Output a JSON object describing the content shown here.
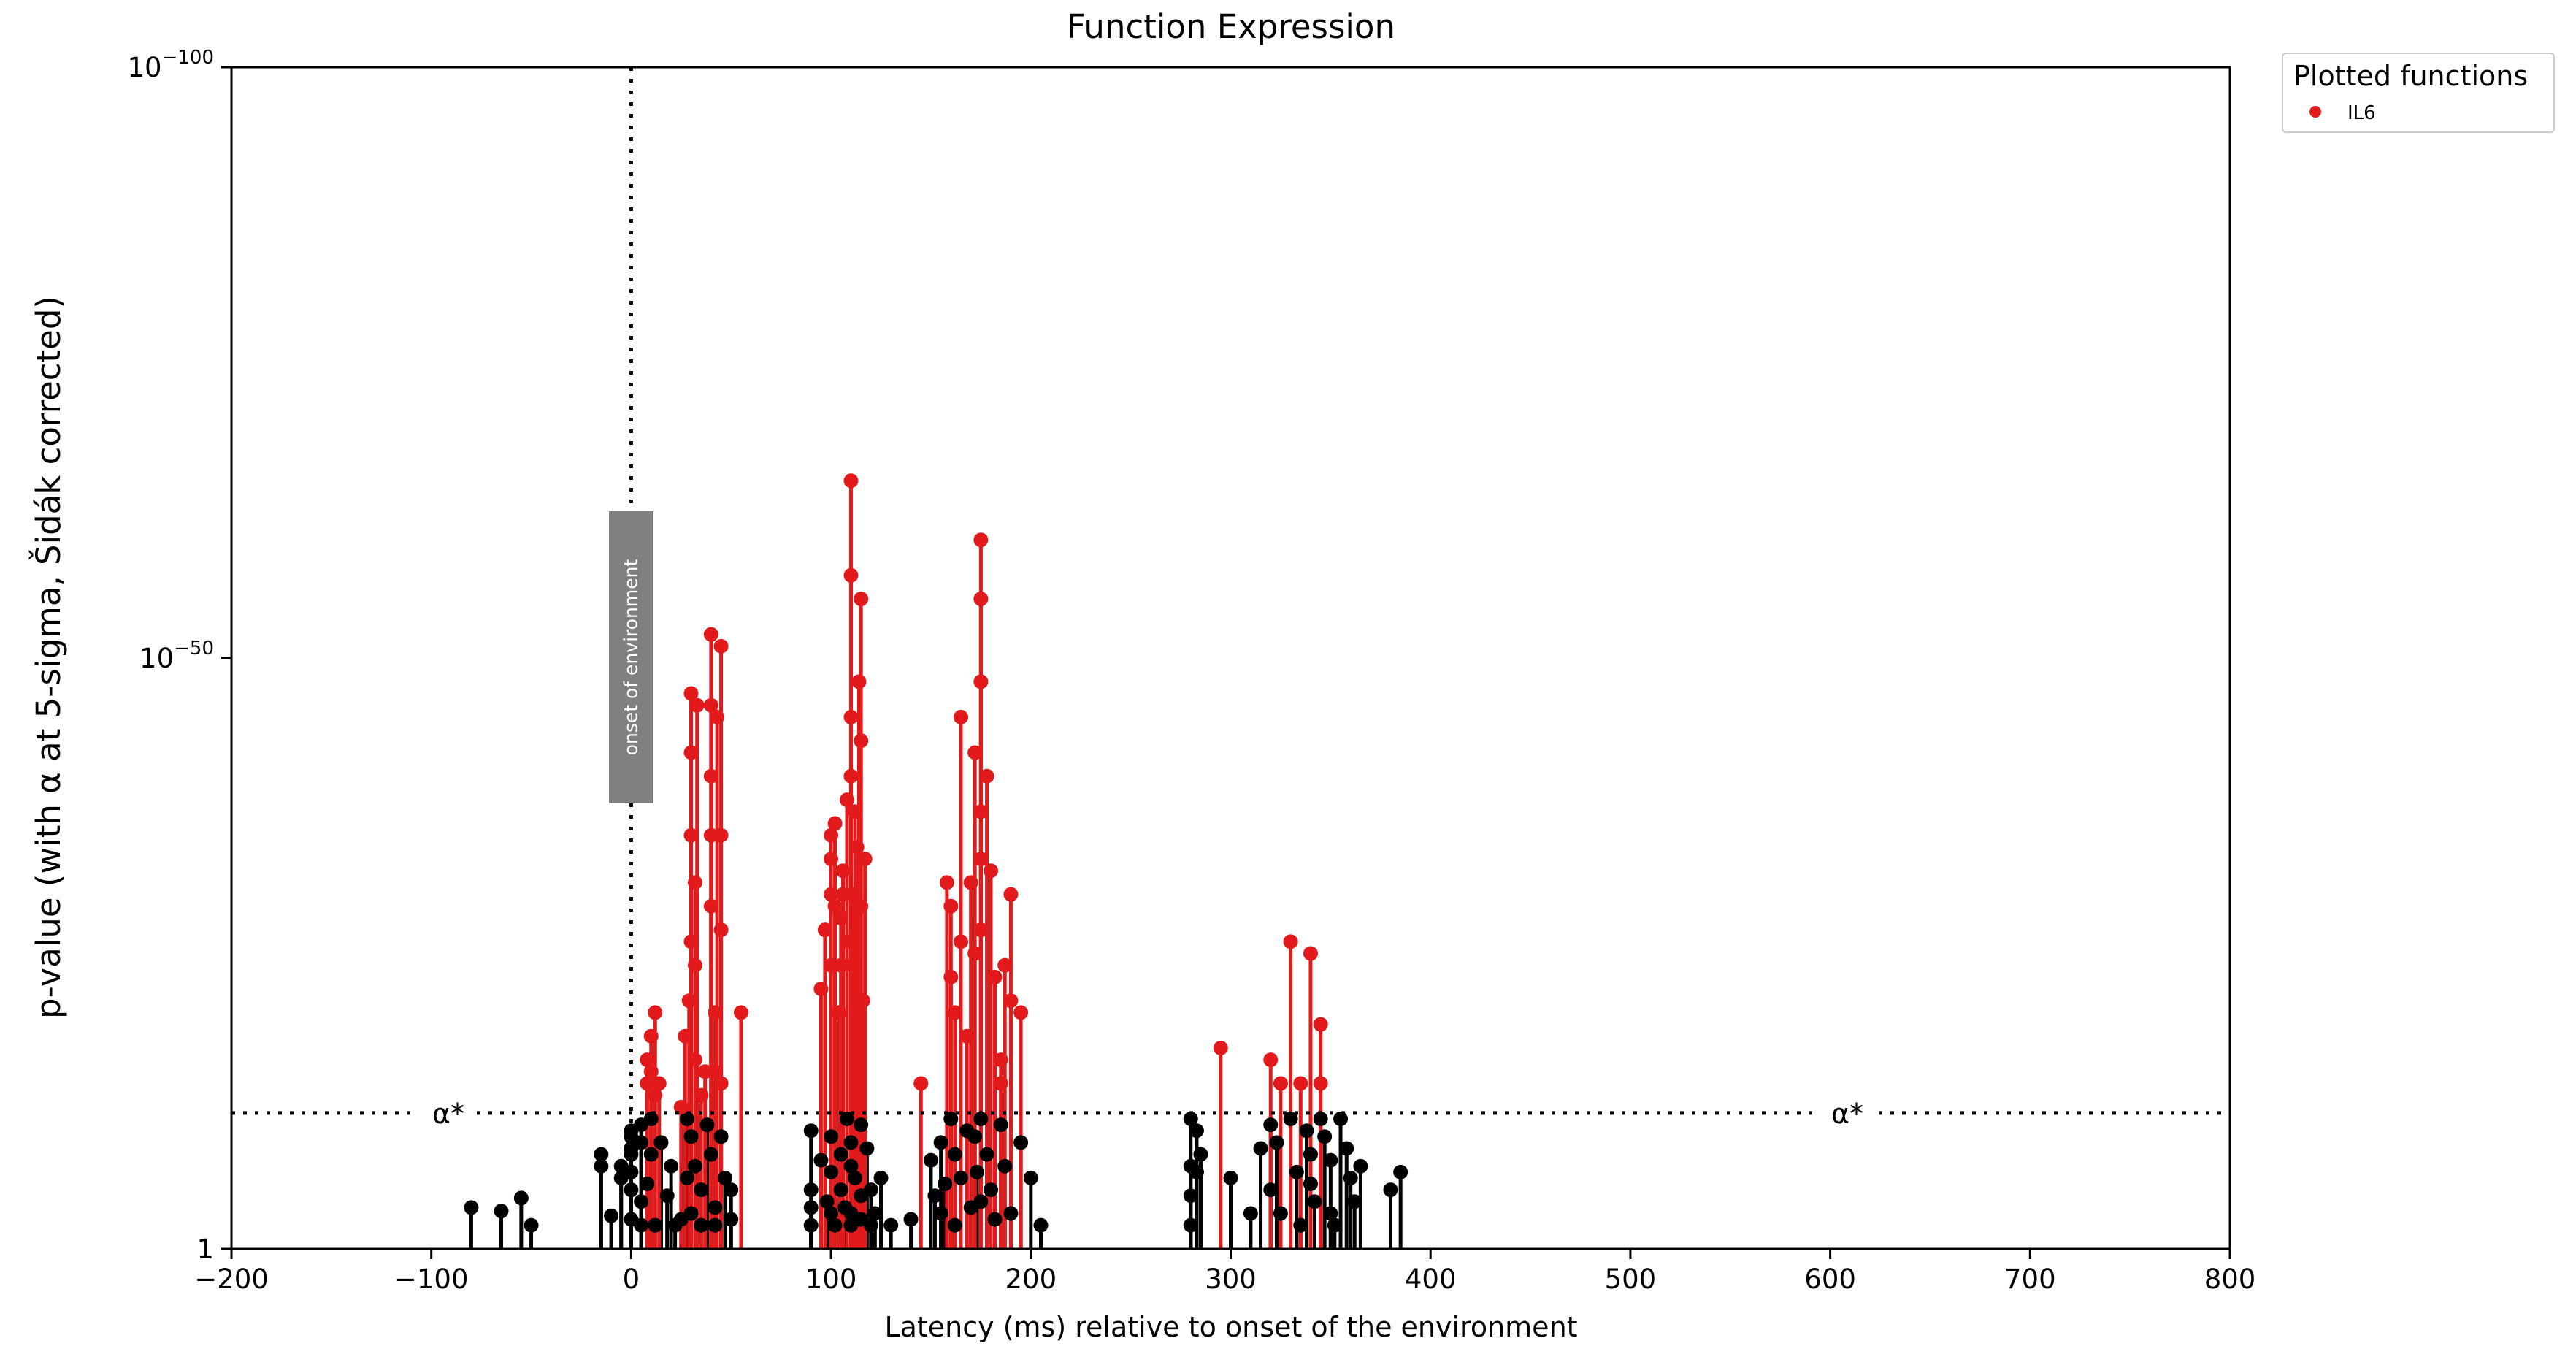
{
  "chart_data": {
    "type": "scatter",
    "title": "Function Expression",
    "xlabel": "Latency (ms) relative to onset of the environment",
    "ylabel": "p-value (with α at 5-sigma, Šidák corrected)",
    "xlim": [
      -200,
      800
    ],
    "ylim_log10": [
      0,
      -100
    ],
    "x_ticks": [
      -200,
      -100,
      0,
      100,
      200,
      300,
      400,
      500,
      600,
      700,
      800
    ],
    "x_tick_labels": [
      "−200",
      "−100",
      "0",
      "100",
      "200",
      "300",
      "400",
      "500",
      "600",
      "700",
      "800"
    ],
    "y_ticks_log10": [
      0,
      -50,
      -100
    ],
    "y_tick_labels": [
      {
        "base": "1",
        "exp": ""
      },
      {
        "base": "10",
        "exp": "−50"
      },
      {
        "base": "10",
        "exp": "−100"
      }
    ],
    "scale": "log",
    "alpha_log10": -11.5,
    "alpha_label": "α*",
    "onset_ms": 0,
    "onset_label": "onset of environment",
    "legend": {
      "title": "Plotted functions",
      "placement": "outside-top-right"
    },
    "colors": {
      "significant": "#e31a1c",
      "nonsignificant": "#000000",
      "onset_box": "#808080"
    },
    "series": [
      {
        "name": "IL6",
        "color": "#e31a1c",
        "significant_points_log10": [
          [
            8,
            -14
          ],
          [
            8,
            -16
          ],
          [
            10,
            -15
          ],
          [
            10,
            -18
          ],
          [
            12,
            -13
          ],
          [
            12,
            -20
          ],
          [
            14,
            -14
          ],
          [
            25,
            -12
          ],
          [
            27,
            -18
          ],
          [
            29,
            -21
          ],
          [
            30,
            -26
          ],
          [
            30,
            -35
          ],
          [
            30,
            -42
          ],
          [
            30,
            -47
          ],
          [
            32,
            -16
          ],
          [
            32,
            -24
          ],
          [
            32,
            -31
          ],
          [
            33,
            -46
          ],
          [
            35,
            -13
          ],
          [
            37,
            -15
          ],
          [
            40,
            -29
          ],
          [
            40,
            -35
          ],
          [
            40,
            -40
          ],
          [
            40,
            -46
          ],
          [
            40,
            -52
          ],
          [
            42,
            -15
          ],
          [
            42,
            -20
          ],
          [
            43,
            -45
          ],
          [
            45,
            -14
          ],
          [
            45,
            -27
          ],
          [
            45,
            -35
          ],
          [
            45,
            -51
          ],
          [
            55,
            -20
          ],
          [
            95,
            -22
          ],
          [
            97,
            -27
          ],
          [
            100,
            -24
          ],
          [
            100,
            -30
          ],
          [
            100,
            -33
          ],
          [
            100,
            -35
          ],
          [
            102,
            -29
          ],
          [
            102,
            -36
          ],
          [
            104,
            -20
          ],
          [
            105,
            -24
          ],
          [
            105,
            -28
          ],
          [
            106,
            -30
          ],
          [
            106,
            -32
          ],
          [
            108,
            -26
          ],
          [
            108,
            -38
          ],
          [
            110,
            -65
          ],
          [
            110,
            -57
          ],
          [
            110,
            -45
          ],
          [
            110,
            -40
          ],
          [
            111,
            -30
          ],
          [
            111,
            -24
          ],
          [
            112,
            -37
          ],
          [
            113,
            -34
          ],
          [
            114,
            -48
          ],
          [
            115,
            -55
          ],
          [
            115,
            -43
          ],
          [
            115,
            -29
          ],
          [
            116,
            -21
          ],
          [
            117,
            -33
          ],
          [
            145,
            -14
          ],
          [
            158,
            -31
          ],
          [
            160,
            -23
          ],
          [
            160,
            -29
          ],
          [
            162,
            -20
          ],
          [
            165,
            -26
          ],
          [
            165,
            -45
          ],
          [
            168,
            -18
          ],
          [
            170,
            -31
          ],
          [
            172,
            -25
          ],
          [
            172,
            -42
          ],
          [
            175,
            -60
          ],
          [
            175,
            -55
          ],
          [
            175,
            -48
          ],
          [
            175,
            -37
          ],
          [
            175,
            -33
          ],
          [
            175,
            -27
          ],
          [
            178,
            -40
          ],
          [
            180,
            -32
          ],
          [
            182,
            -23
          ],
          [
            185,
            -16
          ],
          [
            185,
            -14
          ],
          [
            187,
            -24
          ],
          [
            190,
            -21
          ],
          [
            190,
            -30
          ],
          [
            195,
            -20
          ],
          [
            295,
            -17
          ],
          [
            320,
            -16
          ],
          [
            325,
            -14
          ],
          [
            330,
            -26
          ],
          [
            335,
            -14
          ],
          [
            340,
            -25
          ],
          [
            345,
            -19
          ],
          [
            345,
            -14
          ]
        ],
        "nonsignificant_points_log10": [
          [
            -80,
            -3.5
          ],
          [
            -65,
            -3.2
          ],
          [
            -55,
            -4.3
          ],
          [
            -50,
            -2.0
          ],
          [
            -15,
            -8.0
          ],
          [
            -15,
            -7.0
          ],
          [
            -10,
            -2.8
          ],
          [
            -5,
            -7.0
          ],
          [
            -5,
            -6.0
          ],
          [
            0,
            -10.0
          ],
          [
            0,
            -9.5
          ],
          [
            0,
            -8.5
          ],
          [
            0,
            -8.0
          ],
          [
            0,
            -6.5
          ],
          [
            0,
            -5.0
          ],
          [
            0,
            -2.5
          ],
          [
            5,
            -10.5
          ],
          [
            5,
            -9.0
          ],
          [
            5,
            -4.0
          ],
          [
            5,
            -2.0
          ],
          [
            8,
            -5.5
          ],
          [
            10,
            -11.0
          ],
          [
            10,
            -8.0
          ],
          [
            12,
            -2.0
          ],
          [
            15,
            -9.0
          ],
          [
            18,
            -4.5
          ],
          [
            20,
            -7.0
          ],
          [
            22,
            -2.0
          ],
          [
            25,
            -2.5
          ],
          [
            28,
            -11.0
          ],
          [
            28,
            -6.0
          ],
          [
            30,
            -9.5
          ],
          [
            30,
            -3.0
          ],
          [
            32,
            -7.0
          ],
          [
            35,
            -5.0
          ],
          [
            35,
            -2.0
          ],
          [
            38,
            -10.5
          ],
          [
            40,
            -8.0
          ],
          [
            42,
            -3.5
          ],
          [
            42,
            -2.0
          ],
          [
            45,
            -9.5
          ],
          [
            47,
            -6.0
          ],
          [
            50,
            -5.0
          ],
          [
            50,
            -2.5
          ],
          [
            90,
            -10.0
          ],
          [
            90,
            -5.0
          ],
          [
            90,
            -3.5
          ],
          [
            90,
            -2.0
          ],
          [
            95,
            -7.5
          ],
          [
            98,
            -4.0
          ],
          [
            100,
            -9.5
          ],
          [
            100,
            -6.5
          ],
          [
            100,
            -3.0
          ],
          [
            102,
            -2.0
          ],
          [
            105,
            -8.0
          ],
          [
            105,
            -5.0
          ],
          [
            107,
            -3.5
          ],
          [
            108,
            -11.0
          ],
          [
            110,
            -9.0
          ],
          [
            110,
            -7.0
          ],
          [
            110,
            -3.0
          ],
          [
            110,
            -2.0
          ],
          [
            112,
            -6.0
          ],
          [
            115,
            -10.5
          ],
          [
            115,
            -4.5
          ],
          [
            115,
            -2.5
          ],
          [
            118,
            -8.5
          ],
          [
            120,
            -5.0
          ],
          [
            120,
            -2.0
          ],
          [
            122,
            -3.0
          ],
          [
            125,
            -6.0
          ],
          [
            130,
            -2.0
          ],
          [
            140,
            -2.5
          ],
          [
            150,
            -7.5
          ],
          [
            152,
            -4.5
          ],
          [
            155,
            -3.0
          ],
          [
            155,
            -9.0
          ],
          [
            157,
            -5.5
          ],
          [
            160,
            -11.0
          ],
          [
            162,
            -8.0
          ],
          [
            162,
            -2.0
          ],
          [
            165,
            -6.0
          ],
          [
            168,
            -10.0
          ],
          [
            170,
            -3.5
          ],
          [
            172,
            -9.5
          ],
          [
            173,
            -6.5
          ],
          [
            175,
            -11.0
          ],
          [
            175,
            -4.0
          ],
          [
            178,
            -8.0
          ],
          [
            180,
            -5.0
          ],
          [
            182,
            -2.5
          ],
          [
            185,
            -10.5
          ],
          [
            187,
            -7.0
          ],
          [
            190,
            -3.0
          ],
          [
            195,
            -9.0
          ],
          [
            200,
            -6.0
          ],
          [
            205,
            -2.0
          ],
          [
            280,
            -11.0
          ],
          [
            280,
            -7.0
          ],
          [
            280,
            -4.5
          ],
          [
            280,
            -2.0
          ],
          [
            283,
            -10.0
          ],
          [
            283,
            -6.5
          ],
          [
            285,
            -8.0
          ],
          [
            300,
            -6.0
          ],
          [
            310,
            -3.0
          ],
          [
            315,
            -8.5
          ],
          [
            320,
            -10.5
          ],
          [
            320,
            -5.0
          ],
          [
            323,
            -9.0
          ],
          [
            325,
            -3.0
          ],
          [
            330,
            -11.0
          ],
          [
            333,
            -6.5
          ],
          [
            335,
            -2.0
          ],
          [
            338,
            -10.0
          ],
          [
            340,
            -8.0
          ],
          [
            340,
            -5.5
          ],
          [
            342,
            -4.0
          ],
          [
            345,
            -11.0
          ],
          [
            347,
            -9.5
          ],
          [
            350,
            -7.5
          ],
          [
            350,
            -3.0
          ],
          [
            352,
            -2.0
          ],
          [
            355,
            -11.0
          ],
          [
            358,
            -8.5
          ],
          [
            360,
            -6.0
          ],
          [
            362,
            -4.0
          ],
          [
            365,
            -7.0
          ],
          [
            380,
            -5.0
          ],
          [
            385,
            -6.5
          ]
        ]
      }
    ]
  }
}
